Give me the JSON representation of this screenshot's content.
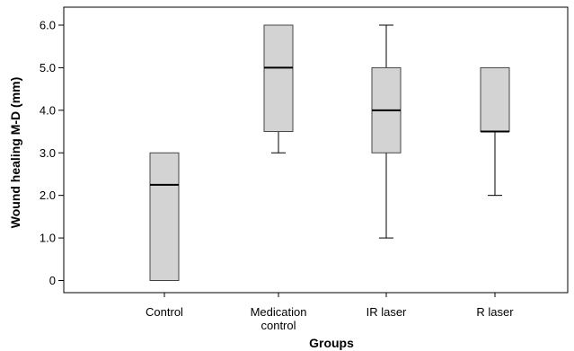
{
  "chart_data": {
    "type": "box",
    "xlabel": "Groups",
    "ylabel": "Wound healing M-D (mm)",
    "ylim": [
      -0.2,
      6.2
    ],
    "yticks": [
      0,
      1.0,
      2.0,
      3.0,
      4.0,
      5.0,
      6.0
    ],
    "ytick_labels": [
      "0",
      "1.0",
      "2.0",
      "3.0",
      "4.0",
      "5.0",
      "6.0"
    ],
    "categories": [
      {
        "label_lines": [
          "Control"
        ],
        "min": 0,
        "q1": 0,
        "median": 2.25,
        "q3": 3.0,
        "max": 3.0
      },
      {
        "label_lines": [
          "Medication",
          "control"
        ],
        "min": 3.0,
        "q1": 3.5,
        "median": 5.0,
        "q3": 6.0,
        "max": 6.0
      },
      {
        "label_lines": [
          "IR laser"
        ],
        "min": 1.0,
        "q1": 3.0,
        "median": 4.0,
        "q3": 5.0,
        "max": 6.0
      },
      {
        "label_lines": [
          "R laser"
        ],
        "min": 2.0,
        "q1": 3.5,
        "median": 3.5,
        "q3": 5.0,
        "max": 5.0
      }
    ],
    "box_fill": "#d3d3d3",
    "grid": false,
    "legend": false
  }
}
